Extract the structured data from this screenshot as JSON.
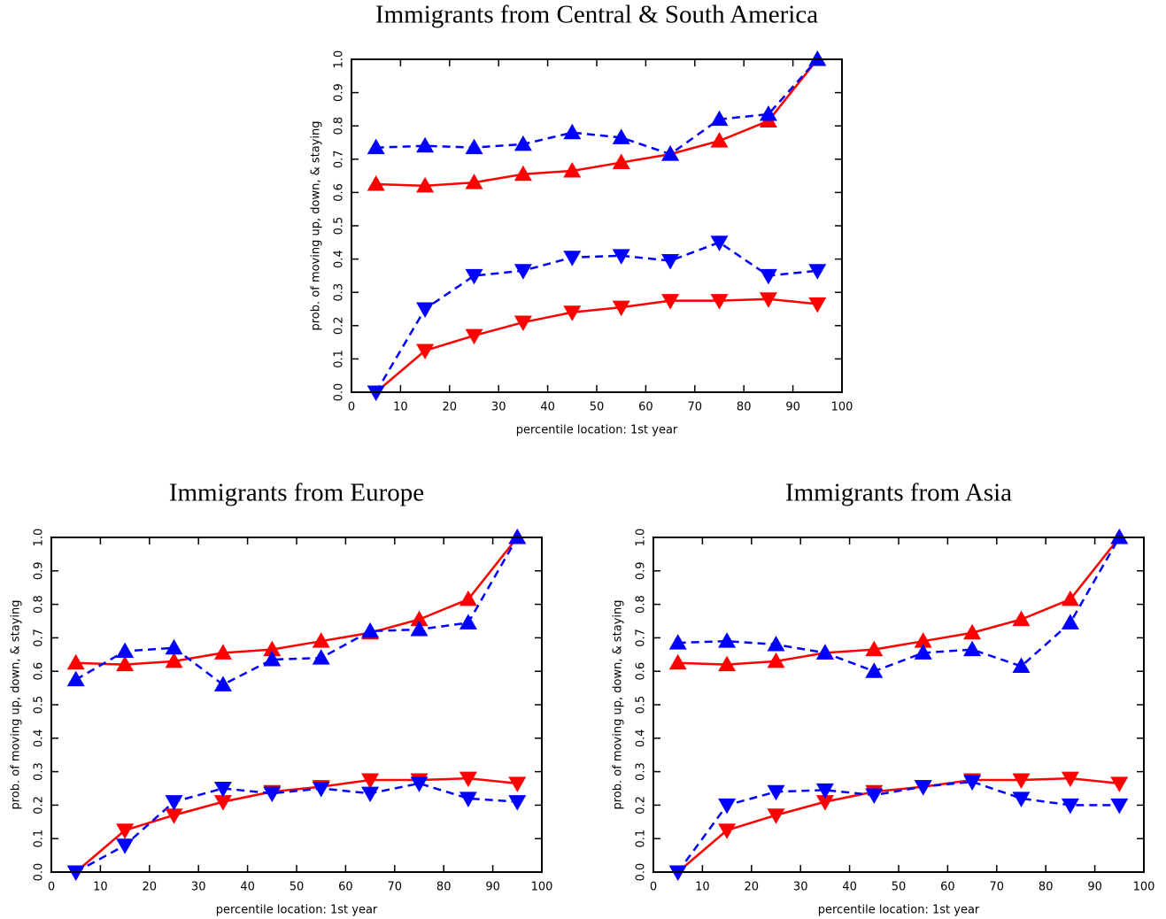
{
  "chart_data": [
    {
      "type": "line",
      "title": "Immigrants from Central & South America",
      "xlabel": "percentile location: 1st year",
      "ylabel": "prob. of moving up, down, & staying",
      "x": [
        5,
        15,
        25,
        35,
        45,
        55,
        65,
        75,
        85,
        95
      ],
      "xlim": [
        0,
        100
      ],
      "xticks": [
        0,
        10,
        20,
        30,
        40,
        50,
        60,
        70,
        80,
        90,
        100
      ],
      "ylim": [
        0,
        1
      ],
      "yticks": [
        {
          "value": 0,
          "label": "0.0"
        },
        0.1,
        0.2,
        0.3,
        0.4,
        0.5,
        0.6,
        0.7,
        0.8,
        0.9,
        {
          "value": 1,
          "label": "1.0"
        }
      ],
      "series": [
        {
          "color": "#ff0000",
          "marker": "triangle-up",
          "dashed": false,
          "values": [
            0.625,
            0.62,
            0.63,
            0.655,
            0.665,
            0.69,
            0.715,
            0.755,
            0.815,
            1.0
          ]
        },
        {
          "color": "#ff0000",
          "marker": "triangle-down",
          "dashed": false,
          "values": [
            0.0,
            0.125,
            0.17,
            0.21,
            0.24,
            0.255,
            0.275,
            0.275,
            0.28,
            0.265
          ]
        },
        {
          "color": "#0000ff",
          "marker": "triangle-up",
          "dashed": true,
          "values": [
            0.735,
            0.74,
            0.735,
            0.745,
            0.78,
            0.765,
            0.715,
            0.82,
            0.835,
            1.0
          ]
        },
        {
          "color": "#0000ff",
          "marker": "triangle-down",
          "dashed": true,
          "values": [
            0.0,
            0.25,
            0.35,
            0.365,
            0.405,
            0.41,
            0.395,
            0.45,
            0.35,
            0.365
          ]
        }
      ]
    },
    {
      "type": "line",
      "title": "Immigrants from Europe",
      "xlabel": "percentile location: 1st year",
      "ylabel": "prob. of moving up, down, & staying",
      "x": [
        5,
        15,
        25,
        35,
        45,
        55,
        65,
        75,
        85,
        95
      ],
      "xlim": [
        0,
        100
      ],
      "xticks": [
        0,
        10,
        20,
        30,
        40,
        50,
        60,
        70,
        80,
        90,
        100
      ],
      "ylim": [
        0,
        1
      ],
      "yticks": [
        {
          "value": 0,
          "label": "0.0"
        },
        0.1,
        0.2,
        0.3,
        0.4,
        0.5,
        0.6,
        0.7,
        0.8,
        0.9,
        {
          "value": 1,
          "label": "1.0"
        }
      ],
      "series": [
        {
          "color": "#ff0000",
          "marker": "triangle-up",
          "dashed": false,
          "values": [
            0.625,
            0.62,
            0.63,
            0.655,
            0.665,
            0.69,
            0.715,
            0.755,
            0.815,
            1.0
          ]
        },
        {
          "color": "#ff0000",
          "marker": "triangle-down",
          "dashed": false,
          "values": [
            0.0,
            0.125,
            0.17,
            0.21,
            0.24,
            0.255,
            0.275,
            0.275,
            0.28,
            0.265
          ]
        },
        {
          "color": "#0000ff",
          "marker": "triangle-up",
          "dashed": true,
          "values": [
            0.575,
            0.66,
            0.67,
            0.56,
            0.635,
            0.64,
            0.72,
            0.725,
            0.745,
            1.0
          ]
        },
        {
          "color": "#0000ff",
          "marker": "triangle-down",
          "dashed": true,
          "values": [
            0.0,
            0.08,
            0.21,
            0.25,
            0.235,
            0.25,
            0.235,
            0.265,
            0.22,
            0.21
          ]
        }
      ]
    },
    {
      "type": "line",
      "title": "Immigrants from Asia",
      "xlabel": "percentile location: 1st year",
      "ylabel": "prob. of moving up, down, & staying",
      "x": [
        5,
        15,
        25,
        35,
        45,
        55,
        65,
        75,
        85,
        95
      ],
      "xlim": [
        0,
        100
      ],
      "xticks": [
        0,
        10,
        20,
        30,
        40,
        50,
        60,
        70,
        80,
        90,
        100
      ],
      "ylim": [
        0,
        1
      ],
      "yticks": [
        {
          "value": 0,
          "label": "0.0"
        },
        0.1,
        0.2,
        0.3,
        0.4,
        0.5,
        0.6,
        0.7,
        0.8,
        0.9,
        {
          "value": 1,
          "label": "1.0"
        }
      ],
      "series": [
        {
          "color": "#ff0000",
          "marker": "triangle-up",
          "dashed": false,
          "values": [
            0.625,
            0.62,
            0.63,
            0.655,
            0.665,
            0.69,
            0.715,
            0.755,
            0.815,
            1.0
          ]
        },
        {
          "color": "#ff0000",
          "marker": "triangle-down",
          "dashed": false,
          "values": [
            0.0,
            0.125,
            0.17,
            0.21,
            0.24,
            0.255,
            0.275,
            0.275,
            0.28,
            0.265
          ]
        },
        {
          "color": "#0000ff",
          "marker": "triangle-up",
          "dashed": true,
          "values": [
            0.685,
            0.69,
            0.68,
            0.655,
            0.6,
            0.655,
            0.665,
            0.615,
            0.745,
            1.0
          ]
        },
        {
          "color": "#0000ff",
          "marker": "triangle-down",
          "dashed": true,
          "values": [
            0.0,
            0.2,
            0.24,
            0.245,
            0.23,
            0.255,
            0.27,
            0.22,
            0.2,
            0.2
          ]
        }
      ]
    }
  ]
}
